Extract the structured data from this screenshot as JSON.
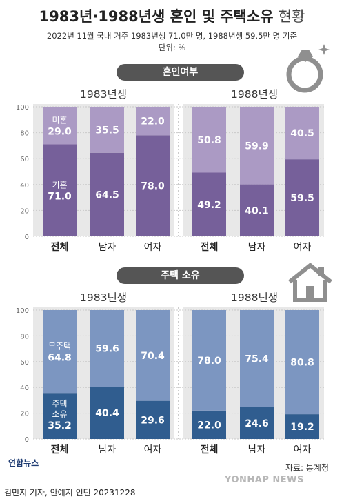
{
  "header": {
    "title_main": "1983년·1988년생 혼인 및 주택소유",
    "title_light": "현황",
    "subtitle": "2022년 11월 국내 거주 1983년생 71.0만 명, 1988년생 59.5만 명 기준",
    "unit": "단위: %"
  },
  "icons": {
    "marriage": "ring-icon",
    "housing": "house-icon"
  },
  "colors": {
    "marriage_dark": "#76609a",
    "marriage_light": "#ab9ac4",
    "housing_dark": "#305d8f",
    "housing_light": "#7c96c1",
    "panel_bg": "#e8e8e8",
    "pill_bg": "#555555"
  },
  "chart_data": [
    {
      "type": "bar",
      "stacked": true,
      "title": "혼인여부",
      "groups": [
        "1983년생",
        "1988년생"
      ],
      "categories": [
        "전체",
        "남자",
        "여자",
        "전체",
        "남자",
        "여자"
      ],
      "ylim": [
        0,
        100
      ],
      "yticks": [
        0,
        20,
        40,
        60,
        80,
        100
      ],
      "series": [
        {
          "name": "기혼",
          "values": [
            71.0,
            64.5,
            78.0,
            49.2,
            40.1,
            59.5
          ],
          "labels": [
            "71.0",
            "64.5",
            "78.0",
            "49.2",
            "40.1",
            "59.5"
          ]
        },
        {
          "name": "미혼",
          "values": [
            29.0,
            35.5,
            22.0,
            50.8,
            59.9,
            40.5
          ],
          "labels": [
            "29.0",
            "35.5",
            "22.0",
            "50.8",
            "59.9",
            "40.5"
          ]
        }
      ]
    },
    {
      "type": "bar",
      "stacked": true,
      "title": "주택 소유",
      "groups": [
        "1983년생",
        "1988년생"
      ],
      "categories": [
        "전체",
        "남자",
        "여자",
        "전체",
        "남자",
        "여자"
      ],
      "ylim": [
        0,
        100
      ],
      "yticks": [
        0,
        20,
        40,
        60,
        80,
        100
      ],
      "series": [
        {
          "name": "주택 소유",
          "values": [
            35.2,
            40.4,
            29.6,
            22.0,
            24.6,
            19.2
          ],
          "labels": [
            "35.2",
            "40.4",
            "29.6",
            "22.0",
            "24.6",
            "19.2"
          ]
        },
        {
          "name": "무주택",
          "values": [
            64.8,
            59.6,
            70.4,
            78.0,
            75.4,
            80.8
          ],
          "labels": [
            "64.8",
            "59.6",
            "70.4",
            "78.0",
            "75.4",
            "80.8"
          ]
        }
      ]
    }
  ],
  "footer": {
    "source": "자료: 통계청",
    "logo": "연합뉴스",
    "credit": "김민지 기자, 안예지 인턴  20231228",
    "watermark": "YONHAP NEWS"
  }
}
